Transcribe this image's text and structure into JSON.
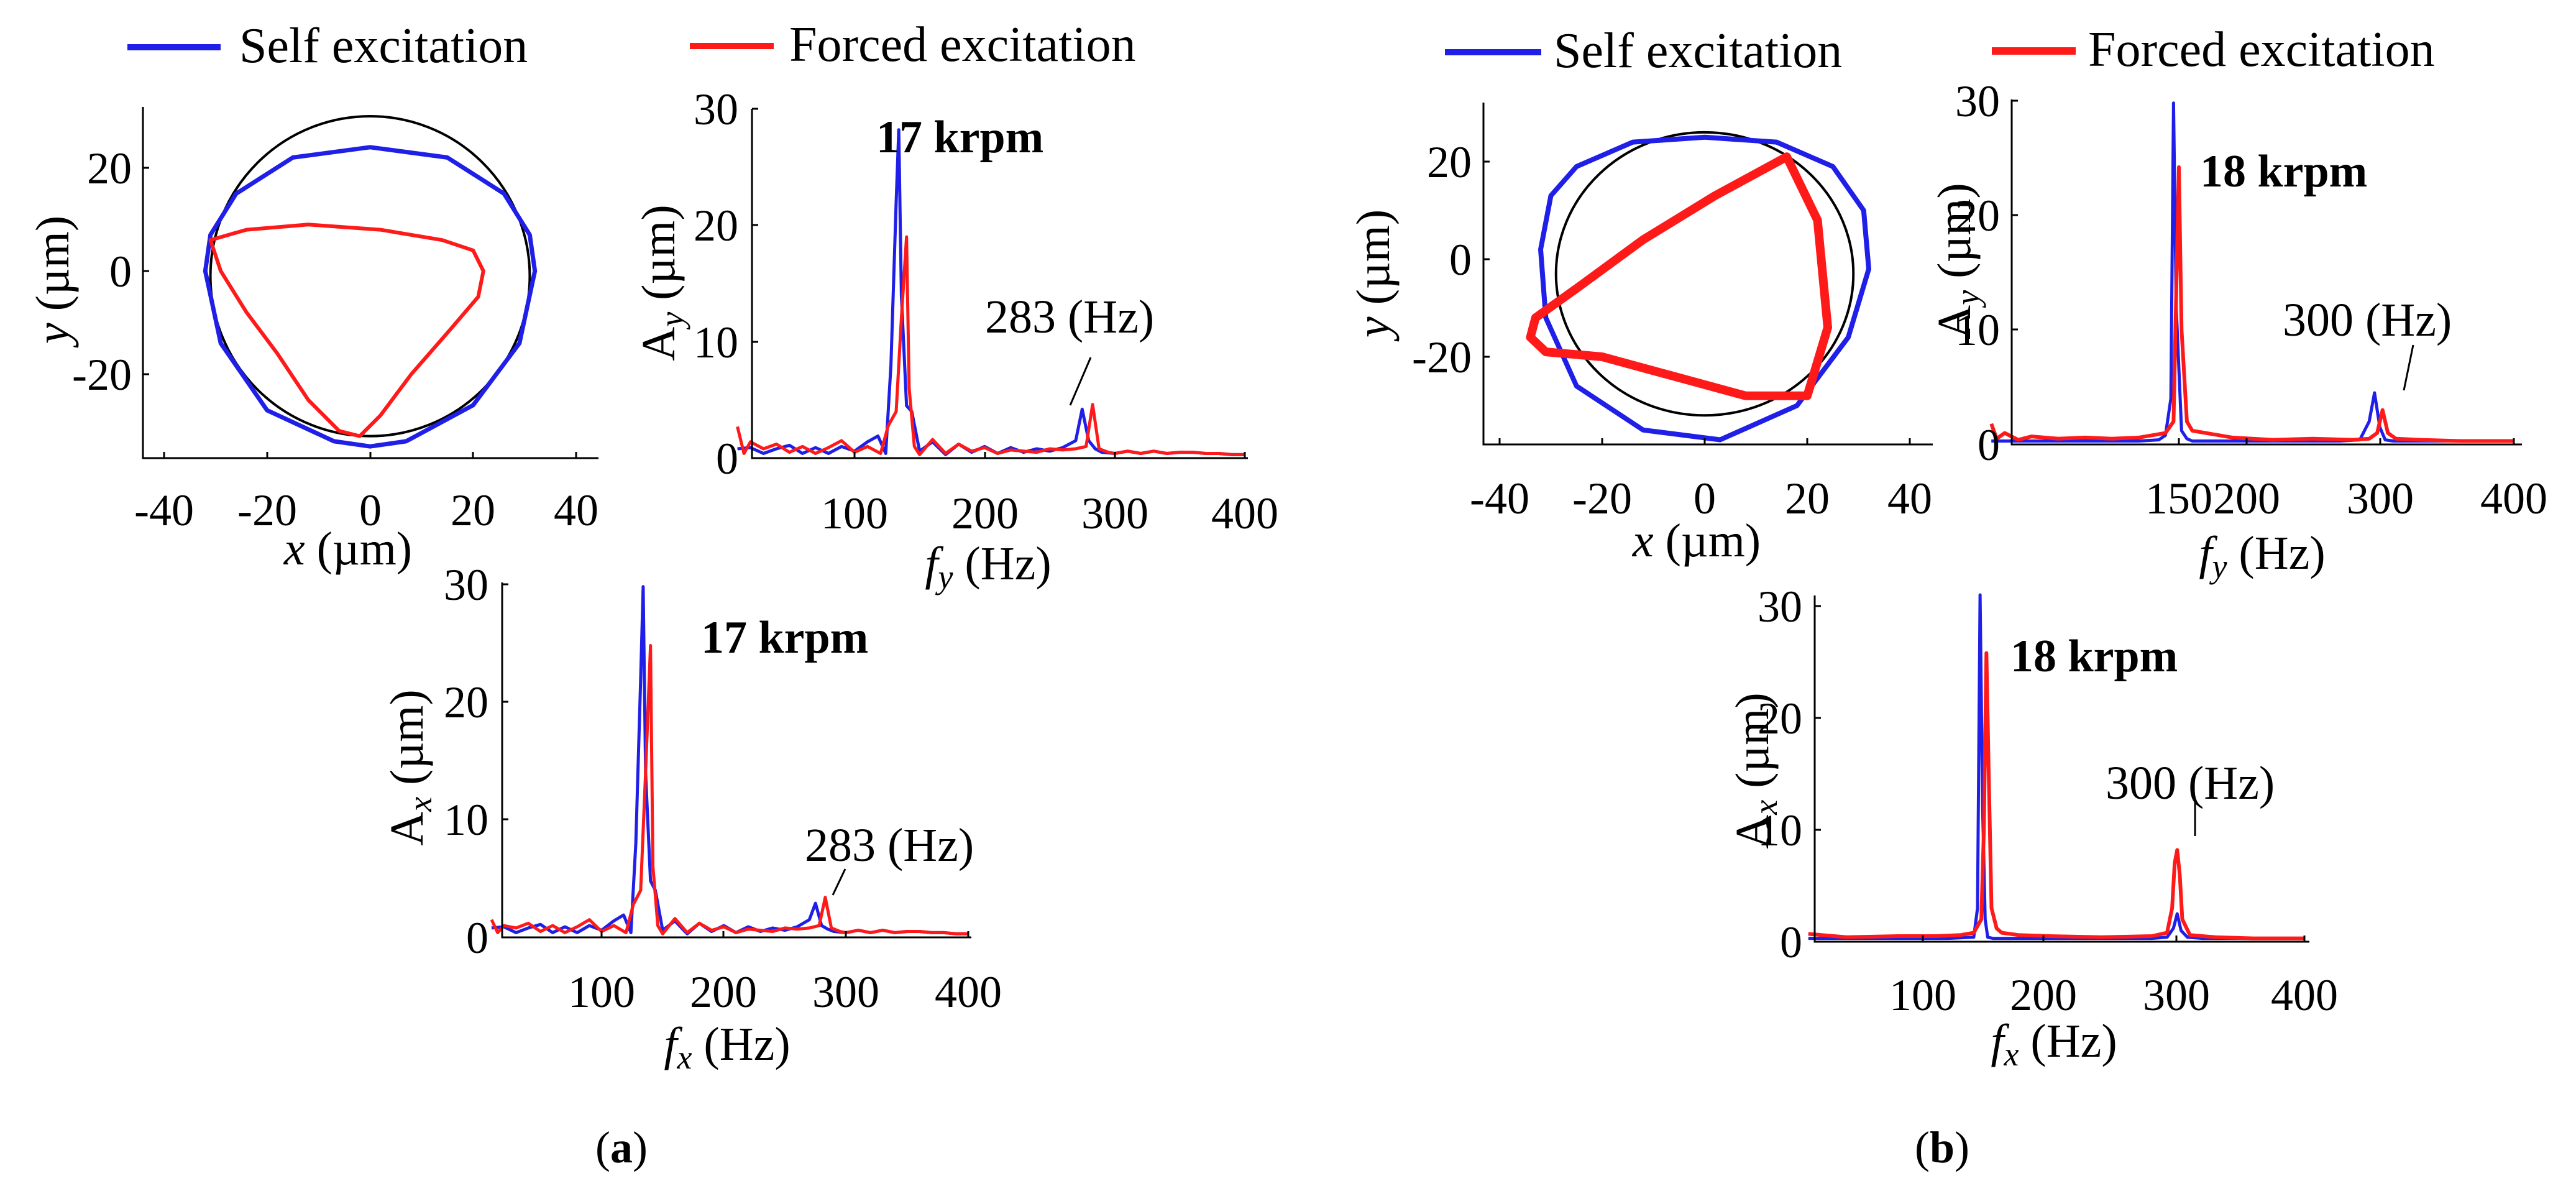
{
  "colors": {
    "self": "#1f1fe8",
    "forced": "#ff1a1a",
    "ref": "#000000"
  },
  "panels": [
    {
      "label": "a",
      "legend": {
        "self": "Self excitation",
        "forced": "Forced excitation"
      },
      "orbit": {
        "xlabel_var": "x",
        "xlabel_unit": " (µm)",
        "ylabel_var": "y",
        "ylabel_unit": " (µm)",
        "xticks": [
          "-40",
          "-20",
          "0",
          "20",
          "40"
        ],
        "yticks": [
          "20",
          "0",
          "-20"
        ]
      },
      "fy": {
        "speed": "17 krpm",
        "annotation": "283 (Hz)",
        "ylabel_main": "A",
        "ylabel_sub": "y",
        "ylabel_unit": " (µm)",
        "xlabel_var": "f",
        "xlabel_sub": "y",
        "xlabel_unit": " (Hz)",
        "xticks": [
          "100",
          "200",
          "300",
          "400"
        ],
        "yticks": [
          "30",
          "20",
          "10",
          "0"
        ]
      },
      "fx": {
        "speed": "17 krpm",
        "annotation": "283 (Hz)",
        "ylabel_main": "A",
        "ylabel_sub": "x",
        "ylabel_unit": " (µm)",
        "xlabel_var": "f",
        "xlabel_sub": "x",
        "xlabel_unit": " (Hz)",
        "xticks": [
          "100",
          "200",
          "300",
          "400"
        ],
        "yticks": [
          "30",
          "20",
          "10",
          "0"
        ]
      }
    },
    {
      "label": "b",
      "legend": {
        "self": "Self excitation",
        "forced": "Forced excitation"
      },
      "orbit": {
        "xlabel_var": "x",
        "xlabel_unit": " (µm)",
        "ylabel_var": "y",
        "ylabel_unit": " (µm)",
        "xticks": [
          "-40",
          "-20",
          "0",
          "20",
          "40"
        ],
        "yticks": [
          "20",
          "0",
          "-20"
        ]
      },
      "fy": {
        "speed": "18 krpm",
        "annotation": "300 (Hz)",
        "ylabel_main": "A",
        "ylabel_sub": "y",
        "ylabel_unit": " (µm)",
        "xlabel_var": "f",
        "xlabel_sub": "y",
        "xlabel_unit": " (Hz)",
        "xticks": [
          "150",
          "200",
          "300",
          "400"
        ],
        "yticks": [
          "30",
          "20",
          "10",
          "0"
        ]
      },
      "fx": {
        "speed": "18 krpm",
        "annotation": "300 (Hz)",
        "ylabel_main": "A",
        "ylabel_sub": "x",
        "ylabel_unit": " (µm)",
        "xlabel_var": "f",
        "xlabel_sub": "x",
        "xlabel_unit": " (Hz)",
        "xticks": [
          "100",
          "200",
          "300",
          "400"
        ],
        "yticks": [
          "30",
          "20",
          "10",
          "0"
        ]
      }
    }
  ],
  "chart_data": [
    {
      "type": "line",
      "id": "a-orbit",
      "title": "",
      "xlabel": "x (µm)",
      "ylabel": "y (µm)",
      "xlim": [
        -46,
        46
      ],
      "ylim": [
        -36,
        32
      ],
      "reference_circle": {
        "cx": 0,
        "cy": -1,
        "r": 31
      },
      "series": [
        {
          "name": "Self excitation",
          "x": [
            0,
            15,
            26,
            31,
            32,
            29,
            20,
            7,
            0,
            -7,
            -20,
            -29,
            -32,
            -31,
            -26,
            -15,
            0
          ],
          "y": [
            24,
            22,
            15,
            7,
            0,
            -14,
            -26,
            -33,
            -34,
            -33,
            -27,
            -14,
            0,
            7,
            15,
            22,
            24
          ]
        },
        {
          "name": "Forced excitation",
          "x": [
            -31,
            -24,
            -12,
            2,
            14,
            20,
            22,
            21,
            15,
            8,
            2,
            -2,
            -6,
            -12,
            -18,
            -24,
            -29,
            -31
          ],
          "y": [
            6,
            8,
            9,
            8,
            6,
            4,
            0,
            -5,
            -12,
            -20,
            -28,
            -32,
            -31,
            -25,
            -16,
            -8,
            0,
            6
          ]
        }
      ]
    },
    {
      "type": "line",
      "id": "a-fy",
      "title": "17 krpm",
      "xlabel": "fy (Hz)",
      "ylabel": "Ay (µm)",
      "xlim": [
        10,
        410
      ],
      "ylim": [
        0,
        30
      ],
      "annotation": {
        "text": "283 (Hz)",
        "x": 283,
        "y": 4.5
      },
      "series": [
        {
          "name": "Self excitation",
          "x": [
            10,
            20,
            30,
            40,
            50,
            60,
            70,
            80,
            90,
            100,
            110,
            118,
            124,
            128,
            132,
            134,
            136,
            140,
            144,
            150,
            160,
            170,
            180,
            190,
            200,
            210,
            220,
            230,
            240,
            250,
            260,
            270,
            275,
            280,
            285,
            290,
            300,
            310,
            320,
            330,
            340,
            350,
            360,
            370,
            380,
            390,
            400
          ],
          "y": [
            0.8,
            0.9,
            0.4,
            0.8,
            1.1,
            0.4,
            0.9,
            0.4,
            1.0,
            0.6,
            1.4,
            1.9,
            0.4,
            8,
            22,
            28.2,
            14,
            4.5,
            4,
            0.6,
            1.4,
            0.3,
            1.2,
            0.5,
            1.0,
            0.4,
            0.9,
            0.5,
            0.8,
            0.6,
            0.9,
            1.5,
            4.2,
            1.5,
            0.8,
            0.5,
            0.4,
            0.6,
            0.4,
            0.6,
            0.4,
            0.5,
            0.5,
            0.4,
            0.4,
            0.3,
            0.3
          ]
        },
        {
          "name": "Forced excitation",
          "x": [
            10,
            15,
            20,
            30,
            40,
            50,
            60,
            70,
            80,
            90,
            100,
            110,
            120,
            126,
            132,
            136,
            140,
            142,
            146,
            150,
            160,
            170,
            180,
            190,
            200,
            210,
            220,
            230,
            240,
            250,
            260,
            270,
            278,
            283,
            288,
            295,
            300,
            310,
            320,
            330,
            340,
            350,
            360,
            370,
            380,
            390,
            400
          ],
          "y": [
            2.7,
            0.4,
            1.4,
            0.8,
            1.2,
            0.5,
            1.0,
            0.4,
            0.9,
            1.5,
            0.5,
            1.0,
            0.4,
            2.8,
            4,
            12,
            19,
            6,
            1.0,
            0.3,
            1.6,
            0.4,
            1.2,
            0.6,
            0.9,
            0.4,
            0.7,
            0.6,
            0.5,
            0.8,
            0.7,
            0.8,
            1.0,
            4.6,
            0.8,
            0.5,
            0.4,
            0.6,
            0.4,
            0.6,
            0.4,
            0.5,
            0.5,
            0.4,
            0.4,
            0.3,
            0.3
          ]
        }
      ]
    },
    {
      "type": "line",
      "id": "a-fx",
      "title": "17 krpm",
      "xlabel": "fx (Hz)",
      "ylabel": "Ax (µm)",
      "xlim": [
        10,
        410
      ],
      "ylim": [
        0,
        30
      ],
      "annotation": {
        "text": "283 (Hz)",
        "x": 283,
        "y": 3.5
      },
      "series": [
        {
          "name": "Self excitation",
          "x": [
            10,
            20,
            30,
            40,
            50,
            60,
            70,
            80,
            90,
            100,
            110,
            118,
            124,
            128,
            132,
            134,
            136,
            140,
            144,
            150,
            160,
            170,
            180,
            190,
            200,
            210,
            220,
            230,
            240,
            250,
            260,
            270,
            275,
            280,
            285,
            290,
            300,
            310,
            320,
            330,
            340,
            350,
            360,
            370,
            380,
            390,
            400
          ],
          "y": [
            0.8,
            0.9,
            0.4,
            0.8,
            1.1,
            0.4,
            0.9,
            0.4,
            1.0,
            0.6,
            1.4,
            1.9,
            0.4,
            8,
            22,
            29.8,
            14,
            4.8,
            4,
            0.6,
            1.4,
            0.3,
            1.2,
            0.5,
            1.0,
            0.4,
            0.9,
            0.5,
            0.8,
            0.6,
            0.9,
            1.5,
            2.9,
            1.0,
            0.7,
            0.5,
            0.4,
            0.6,
            0.4,
            0.6,
            0.4,
            0.5,
            0.5,
            0.4,
            0.4,
            0.3,
            0.3
          ]
        },
        {
          "name": "Forced excitation",
          "x": [
            10,
            15,
            20,
            30,
            40,
            50,
            60,
            70,
            80,
            90,
            100,
            110,
            120,
            126,
            132,
            136,
            140,
            142,
            146,
            150,
            160,
            170,
            180,
            190,
            200,
            210,
            220,
            230,
            240,
            250,
            260,
            270,
            278,
            283,
            288,
            295,
            300,
            310,
            320,
            330,
            340,
            350,
            360,
            370,
            380,
            390,
            400
          ],
          "y": [
            1.5,
            0.4,
            1.0,
            0.8,
            1.2,
            0.5,
            1.0,
            0.4,
            0.9,
            1.5,
            0.5,
            1.0,
            0.4,
            2.8,
            4,
            14,
            24.8,
            6,
            1.0,
            0.3,
            1.6,
            0.4,
            1.2,
            0.6,
            0.9,
            0.4,
            0.7,
            0.6,
            0.5,
            0.8,
            0.7,
            0.8,
            1.0,
            3.4,
            0.8,
            0.5,
            0.4,
            0.6,
            0.4,
            0.6,
            0.4,
            0.5,
            0.5,
            0.4,
            0.4,
            0.3,
            0.3
          ]
        }
      ]
    },
    {
      "type": "line",
      "id": "b-orbit",
      "title": "",
      "xlabel": "x (µm)",
      "ylabel": "y (µm)",
      "xlim": [
        -46,
        46
      ],
      "ylim": [
        -38,
        32
      ],
      "reference_circle": {
        "cx": 0,
        "cy": -3,
        "r": 29
      },
      "series": [
        {
          "name": "Self excitation",
          "x": [
            0,
            14,
            25,
            31,
            32,
            28,
            18,
            3,
            -12,
            -25,
            -31,
            -32,
            -30,
            -25,
            -14,
            0
          ],
          "y": [
            25,
            24,
            19,
            10,
            -2,
            -16,
            -30,
            -37,
            -35,
            -26,
            -12,
            2,
            13,
            19,
            24,
            25
          ]
        },
        {
          "name": "Forced excitation",
          "x": [
            16,
            22,
            24,
            20,
            8,
            -6,
            -20,
            -31,
            -34,
            -33,
            -25,
            -12,
            2,
            16
          ],
          "y": [
            21,
            8,
            -14,
            -28,
            -28,
            -24,
            -20,
            -19,
            -16,
            -12,
            -6,
            4,
            13,
            21
          ]
        }
      ]
    },
    {
      "type": "line",
      "id": "b-fy",
      "title": "18 krpm",
      "xlabel": "fy (Hz)",
      "ylabel": "Ay (µm)",
      "xlim": [
        10,
        410
      ],
      "ylim": [
        0,
        30
      ],
      "annotation": {
        "text": "300 (Hz)",
        "x": 300,
        "y": 4.5
      },
      "series": [
        {
          "name": "Self excitation",
          "x": [
            10,
            30,
            60,
            90,
            120,
            135,
            140,
            144,
            146,
            148,
            152,
            156,
            160,
            180,
            210,
            240,
            270,
            285,
            292,
            296,
            300,
            304,
            310,
            330,
            360,
            390,
            400
          ],
          "y": [
            0.3,
            0.3,
            0.3,
            0.3,
            0.3,
            0.4,
            0.8,
            4,
            29.8,
            12,
            1.2,
            0.5,
            0.3,
            0.3,
            0.3,
            0.3,
            0.3,
            0.4,
            2,
            4.5,
            1.5,
            0.4,
            0.3,
            0.3,
            0.3,
            0.3,
            0.3
          ]
        },
        {
          "name": "Forced excitation",
          "x": [
            10,
            14,
            20,
            30,
            40,
            60,
            80,
            100,
            120,
            130,
            140,
            146,
            150,
            152,
            156,
            160,
            170,
            190,
            220,
            250,
            280,
            292,
            298,
            302,
            306,
            312,
            330,
            360,
            390,
            400
          ],
          "y": [
            1.8,
            0.5,
            1.0,
            0.4,
            0.7,
            0.5,
            0.6,
            0.5,
            0.6,
            0.8,
            1.0,
            2,
            24.2,
            10,
            2,
            1.2,
            1.0,
            0.6,
            0.4,
            0.5,
            0.4,
            0.5,
            1.0,
            3.0,
            1.0,
            0.5,
            0.4,
            0.3,
            0.3,
            0.3
          ]
        }
      ]
    },
    {
      "type": "line",
      "id": "b-fx",
      "title": "18 krpm",
      "xlabel": "fx (Hz)",
      "ylabel": "Ax (µm)",
      "xlim": [
        10,
        410
      ],
      "ylim": [
        0,
        31
      ],
      "annotation": {
        "text": "300 (Hz)",
        "x": 300,
        "y": 9
      },
      "series": [
        {
          "name": "Self excitation",
          "x": [
            10,
            40,
            80,
            120,
            140,
            143,
            145,
            147,
            149,
            151,
            155,
            160,
            190,
            240,
            280,
            292,
            297,
            300,
            303,
            308,
            320,
            360,
            400
          ],
          "y": [
            0.3,
            0.3,
            0.3,
            0.3,
            0.4,
            3,
            31,
            12,
            2,
            0.4,
            0.3,
            0.3,
            0.3,
            0.3,
            0.3,
            0.4,
            1.2,
            2.5,
            1.0,
            0.4,
            0.3,
            0.3,
            0.3
          ]
        },
        {
          "name": "Forced excitation",
          "x": [
            10,
            40,
            80,
            110,
            130,
            140,
            146,
            148,
            150,
            152,
            154,
            158,
            162,
            175,
            200,
            240,
            280,
            292,
            296,
            298,
            300,
            302,
            304,
            310,
            330,
            360,
            400
          ],
          "y": [
            0.7,
            0.4,
            0.5,
            0.5,
            0.6,
            0.8,
            2,
            10,
            25.8,
            14,
            3,
            1.2,
            0.8,
            0.6,
            0.5,
            0.4,
            0.5,
            0.8,
            3,
            7,
            8.2,
            6,
            2,
            0.6,
            0.4,
            0.3,
            0.3
          ]
        }
      ]
    }
  ]
}
